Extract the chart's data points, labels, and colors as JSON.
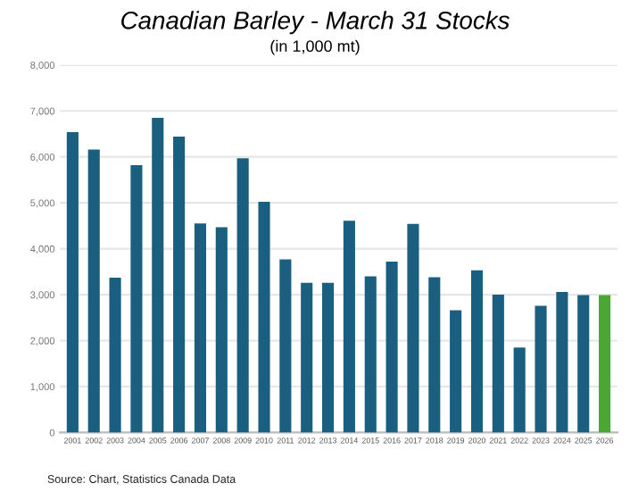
{
  "chart_data": {
    "type": "bar",
    "title": "Canadian Barley - March 31 Stocks",
    "subtitle": "(in 1,000 mt)",
    "categories": [
      "2001",
      "2002",
      "2003",
      "2004",
      "2005",
      "2006",
      "2007",
      "2008",
      "2009",
      "2010",
      "2011",
      "2012",
      "2013",
      "2014",
      "2015",
      "2016",
      "2017",
      "2018",
      "2019",
      "2020",
      "2021",
      "2022",
      "2023",
      "2024",
      "2025",
      "2026"
    ],
    "values": [
      6540,
      6160,
      3370,
      5820,
      6850,
      6440,
      4550,
      4470,
      5970,
      5020,
      3770,
      3260,
      3260,
      4610,
      3400,
      3720,
      4540,
      3380,
      2660,
      3530,
      3000,
      1850,
      2760,
      3060,
      2990,
      2990
    ],
    "colors": [
      "#1b5f80",
      "#1b5f80",
      "#1b5f80",
      "#1b5f80",
      "#1b5f80",
      "#1b5f80",
      "#1b5f80",
      "#1b5f80",
      "#1b5f80",
      "#1b5f80",
      "#1b5f80",
      "#1b5f80",
      "#1b5f80",
      "#1b5f80",
      "#1b5f80",
      "#1b5f80",
      "#1b5f80",
      "#1b5f80",
      "#1b5f80",
      "#1b5f80",
      "#1b5f80",
      "#1b5f80",
      "#1b5f80",
      "#1b5f80",
      "#1b5f80",
      "#4aa832"
    ],
    "ylim": [
      0,
      8000
    ],
    "yticks": [
      0,
      {
        "value": 1000,
        "label": "1,000"
      },
      {
        "value": 2000,
        "label": "2,000"
      },
      {
        "value": 3000,
        "label": "3,000"
      },
      {
        "value": 4000,
        "label": "4,000"
      },
      {
        "value": 5000,
        "label": "5,000"
      },
      {
        "value": 6000,
        "label": "6,000"
      },
      {
        "value": 7000,
        "label": "7,000"
      },
      {
        "value": 8000,
        "label": "8,000"
      }
    ],
    "grid": "y",
    "annotations": [
      "Source: Chart, Statistics Canada Data"
    ]
  }
}
